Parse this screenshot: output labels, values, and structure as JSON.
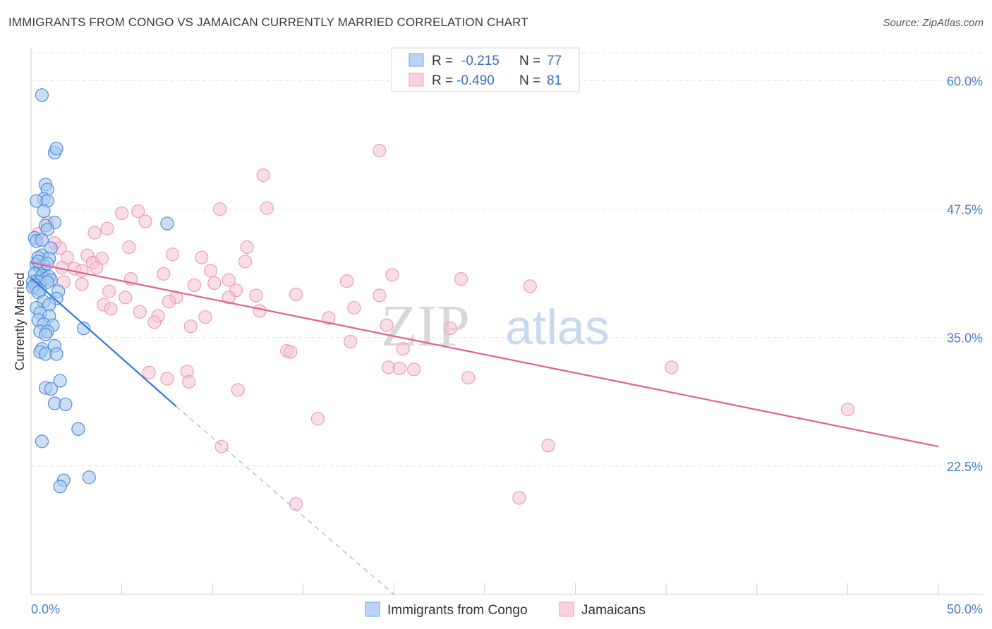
{
  "header": {
    "title": "IMMIGRANTS FROM CONGO VS JAMAICAN CURRENTLY MARRIED CORRELATION CHART",
    "source": "Source: ZipAtlas.com"
  },
  "watermark": {
    "zip": "ZIP",
    "atlas": "atlas"
  },
  "legend_box": {
    "rows": [
      {
        "r_label": "R =",
        "r_value": "-0.215",
        "n_label": "N =",
        "n_value": "77",
        "color": "#6fa3e0"
      },
      {
        "r_label": "R =",
        "r_value": "-0.490",
        "n_label": "N =",
        "n_value": "81",
        "color": "#f0a0b8"
      }
    ]
  },
  "bottom_legend": [
    {
      "label": "Immigrants from Congo",
      "color": "#6fa3e0"
    },
    {
      "label": "Jamaicans",
      "color": "#f0a0b8"
    }
  ],
  "chart_data": {
    "type": "scatter",
    "ylabel": "Currently Married",
    "xlim": [
      0,
      50
    ],
    "ylim": [
      10,
      62.5
    ],
    "x_ticks_labels": {
      "min": "0.0%",
      "max": "50.0%"
    },
    "y_ticks": [
      22.5,
      35.0,
      47.5,
      60.0
    ],
    "y_tick_labels": [
      "22.5%",
      "35.0%",
      "47.5%",
      "60.0%"
    ],
    "grid": true,
    "colors": {
      "congo": "#2f76d4",
      "congo_fill": "#a9c8ef",
      "jamaica": "#e0608f",
      "jamaica_fill": "#f6c3d4"
    },
    "series": [
      {
        "name": "Immigrants from Congo",
        "trend": {
          "x0": 0.0,
          "y0": 40.8,
          "x1": 8.0,
          "y1": 28.3,
          "dash_to_x": 20.0,
          "dash_to_y": 10.0
        },
        "points": [
          [
            0.6,
            58.6
          ],
          [
            1.3,
            53.0
          ],
          [
            1.4,
            53.4
          ],
          [
            0.8,
            49.9
          ],
          [
            0.9,
            49.4
          ],
          [
            0.7,
            48.5
          ],
          [
            0.3,
            48.3
          ],
          [
            0.9,
            48.3
          ],
          [
            0.7,
            47.3
          ],
          [
            1.3,
            46.2
          ],
          [
            7.5,
            46.1
          ],
          [
            0.8,
            45.9
          ],
          [
            0.9,
            45.5
          ],
          [
            0.2,
            44.7
          ],
          [
            0.3,
            44.4
          ],
          [
            0.6,
            44.5
          ],
          [
            1.1,
            43.7
          ],
          [
            0.6,
            43.0
          ],
          [
            0.4,
            42.8
          ],
          [
            1.0,
            42.7
          ],
          [
            0.3,
            42.1
          ],
          [
            0.5,
            41.9
          ],
          [
            0.7,
            42.0
          ],
          [
            0.4,
            42.4
          ],
          [
            0.9,
            42.2
          ],
          [
            0.2,
            41.2
          ],
          [
            0.6,
            41.0
          ],
          [
            0.8,
            40.7
          ],
          [
            1.0,
            40.9
          ],
          [
            0.3,
            40.5
          ],
          [
            0.1,
            40.4
          ],
          [
            0.5,
            40.4
          ],
          [
            0.2,
            40.1
          ],
          [
            1.1,
            40.6
          ],
          [
            0.9,
            40.4
          ],
          [
            0.3,
            39.8
          ],
          [
            0.5,
            39.6
          ],
          [
            0.1,
            39.9
          ],
          [
            0.4,
            39.4
          ],
          [
            1.5,
            39.5
          ],
          [
            1.4,
            38.8
          ],
          [
            0.7,
            38.5
          ],
          [
            1.0,
            38.2
          ],
          [
            0.3,
            37.9
          ],
          [
            0.5,
            37.4
          ],
          [
            1.0,
            37.1
          ],
          [
            0.4,
            36.7
          ],
          [
            0.7,
            36.3
          ],
          [
            1.2,
            36.2
          ],
          [
            2.9,
            35.9
          ],
          [
            0.5,
            35.6
          ],
          [
            0.9,
            35.6
          ],
          [
            0.8,
            35.3
          ],
          [
            1.3,
            34.2
          ],
          [
            0.6,
            33.9
          ],
          [
            0.5,
            33.6
          ],
          [
            0.8,
            33.4
          ],
          [
            1.4,
            33.4
          ],
          [
            1.6,
            30.8
          ],
          [
            0.8,
            30.1
          ],
          [
            1.1,
            30.0
          ],
          [
            1.3,
            28.6
          ],
          [
            1.9,
            28.5
          ],
          [
            2.6,
            26.1
          ],
          [
            0.6,
            24.9
          ],
          [
            1.8,
            21.1
          ],
          [
            3.2,
            21.4
          ],
          [
            1.6,
            20.5
          ]
        ]
      },
      {
        "name": "Jamaicans",
        "trend": {
          "x0": 0.0,
          "y0": 42.3,
          "x1": 50.0,
          "y1": 24.4
        },
        "points": [
          [
            19.2,
            53.2
          ],
          [
            12.8,
            50.8
          ],
          [
            5.0,
            47.1
          ],
          [
            5.9,
            47.3
          ],
          [
            10.4,
            47.5
          ],
          [
            13.0,
            47.6
          ],
          [
            6.3,
            46.3
          ],
          [
            4.2,
            45.6
          ],
          [
            0.9,
            46.2
          ],
          [
            0.4,
            45.1
          ],
          [
            3.5,
            45.2
          ],
          [
            1.3,
            44.2
          ],
          [
            1.6,
            43.7
          ],
          [
            5.4,
            43.8
          ],
          [
            11.9,
            43.8
          ],
          [
            3.1,
            43.0
          ],
          [
            7.8,
            43.1
          ],
          [
            9.4,
            42.8
          ],
          [
            2.0,
            42.8
          ],
          [
            3.9,
            42.7
          ],
          [
            11.8,
            42.4
          ],
          [
            3.4,
            42.3
          ],
          [
            1.7,
            41.8
          ],
          [
            2.4,
            41.7
          ],
          [
            3.6,
            41.8
          ],
          [
            9.9,
            41.5
          ],
          [
            7.3,
            41.2
          ],
          [
            19.9,
            41.1
          ],
          [
            2.8,
            41.5
          ],
          [
            5.5,
            40.7
          ],
          [
            10.9,
            40.6
          ],
          [
            17.4,
            40.5
          ],
          [
            23.7,
            40.7
          ],
          [
            1.8,
            40.4
          ],
          [
            2.8,
            40.2
          ],
          [
            9.0,
            40.1
          ],
          [
            10.1,
            40.3
          ],
          [
            27.5,
            40.0
          ],
          [
            11.3,
            39.6
          ],
          [
            4.3,
            39.5
          ],
          [
            14.6,
            39.2
          ],
          [
            19.2,
            39.1
          ],
          [
            8.0,
            38.9
          ],
          [
            12.4,
            39.1
          ],
          [
            5.2,
            38.9
          ],
          [
            10.9,
            38.9
          ],
          [
            7.6,
            38.5
          ],
          [
            4.0,
            38.2
          ],
          [
            17.8,
            37.9
          ],
          [
            4.4,
            37.8
          ],
          [
            12.6,
            37.6
          ],
          [
            6.0,
            37.5
          ],
          [
            9.6,
            37.0
          ],
          [
            7.0,
            37.1
          ],
          [
            16.4,
            36.9
          ],
          [
            6.8,
            36.5
          ],
          [
            8.8,
            36.1
          ],
          [
            19.6,
            36.2
          ],
          [
            23.1,
            35.9
          ],
          [
            17.6,
            34.6
          ],
          [
            20.5,
            33.9
          ],
          [
            14.1,
            33.7
          ],
          [
            14.3,
            33.6
          ],
          [
            19.7,
            32.1
          ],
          [
            20.3,
            32.0
          ],
          [
            21.1,
            31.9
          ],
          [
            35.3,
            32.1
          ],
          [
            6.5,
            31.6
          ],
          [
            8.6,
            31.7
          ],
          [
            7.5,
            31.0
          ],
          [
            8.7,
            30.7
          ],
          [
            24.1,
            31.1
          ],
          [
            11.4,
            29.9
          ],
          [
            45.0,
            28.0
          ],
          [
            15.8,
            27.1
          ],
          [
            10.5,
            24.4
          ],
          [
            28.5,
            24.5
          ],
          [
            14.6,
            18.8
          ],
          [
            26.9,
            19.4
          ]
        ]
      }
    ]
  }
}
